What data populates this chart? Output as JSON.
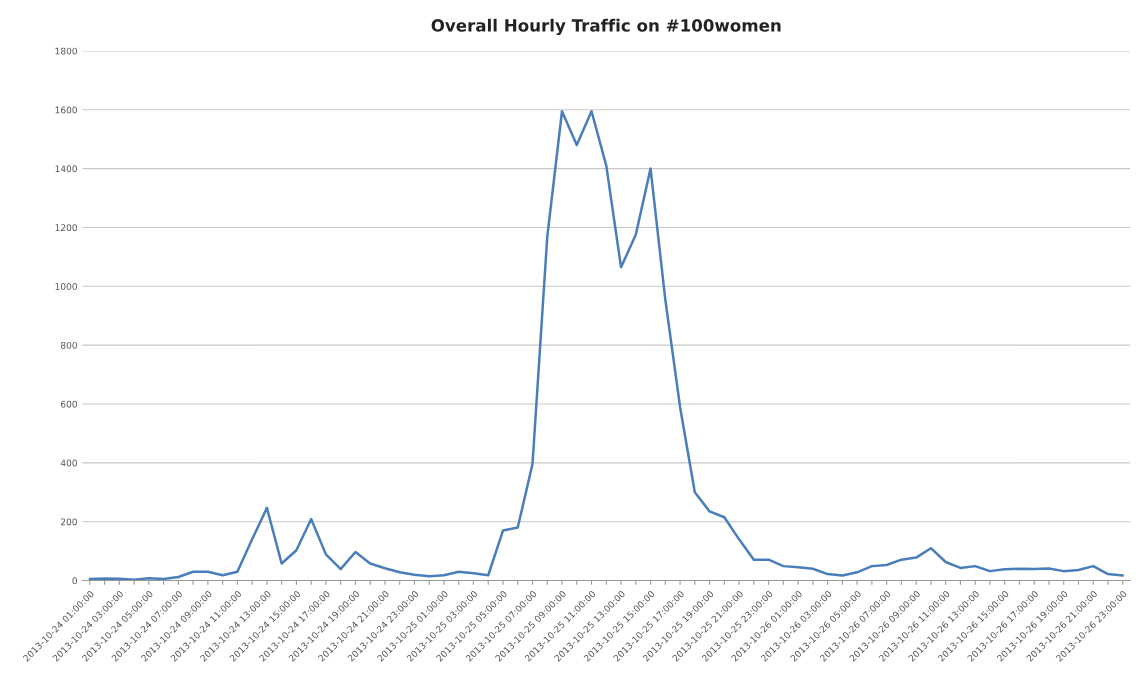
{
  "chart_data": {
    "type": "line",
    "title": "Overall Hourly Traffic on #100women",
    "categories": [
      "2013-10-24 01:00:00",
      null,
      "2013-10-24 03:00:00",
      null,
      "2013-10-24 05:00:00",
      null,
      "2013-10-24 07:00:00",
      null,
      "2013-10-24 09:00:00",
      null,
      "2013-10-24 11:00:00",
      null,
      "2013-10-24 13:00:00",
      null,
      "2013-10-24 15:00:00",
      null,
      "2013-10-24 17:00:00",
      null,
      "2013-10-24 19:00:00",
      null,
      "2013-10-24 21:00:00",
      null,
      "2013-10-24 23:00:00",
      null,
      "2013-10-25 01:00:00",
      null,
      "2013-10-25 03:00:00",
      null,
      "2013-10-25 05:00:00",
      null,
      "2013-10-25 07:00:00",
      null,
      "2013-10-25 09:00:00",
      null,
      "2013-10-25 11:00:00",
      null,
      "2013-10-25 13:00:00",
      null,
      "2013-10-25 15:00:00",
      null,
      "2013-10-25 17:00:00",
      null,
      "2013-10-25 19:00:00",
      null,
      "2013-10-25 21:00:00",
      null,
      "2013-10-25 23:00:00",
      null,
      "2013-10-26 01:00:00",
      null,
      "2013-10-26 03:00:00",
      null,
      "2013-10-26 05:00:00",
      null,
      "2013-10-26 07:00:00",
      null,
      "2013-10-26 09:00:00",
      null,
      "2013-10-26 11:00:00",
      null,
      "2013-10-26 13:00:00",
      null,
      "2013-10-26 15:00:00",
      null,
      "2013-10-26 17:00:00",
      null,
      "2013-10-26 19:00:00",
      null,
      "2013-10-26 21:00:00",
      null,
      "2013-10-26 23:00:00"
    ],
    "series": [
      {
        "color": "#4a7ebb",
        "values": [
          5,
          7,
          6,
          3,
          8,
          5,
          12,
          30,
          30,
          18,
          30,
          140,
          247,
          58,
          103,
          209,
          89,
          39,
          97,
          58,
          42,
          28,
          20,
          15,
          18,
          30,
          25,
          18,
          170,
          180,
          396,
          1168,
          1595,
          1480,
          1595,
          1410,
          1065,
          1175,
          1400,
          955,
          590,
          300,
          235,
          215,
          140,
          71,
          71,
          49,
          45,
          40,
          22,
          17,
          28,
          49,
          53,
          71,
          78,
          110,
          63,
          43,
          49,
          32,
          38,
          40,
          39,
          41,
          32,
          36,
          49,
          22,
          17
        ]
      }
    ],
    "ylim": [
      0,
      1800
    ],
    "yticks": [
      0,
      200,
      400,
      600,
      800,
      1000,
      1200,
      1400,
      1600,
      1800
    ],
    "grid": "y",
    "legend": false,
    "marker": "none",
    "line_style": "solid"
  }
}
